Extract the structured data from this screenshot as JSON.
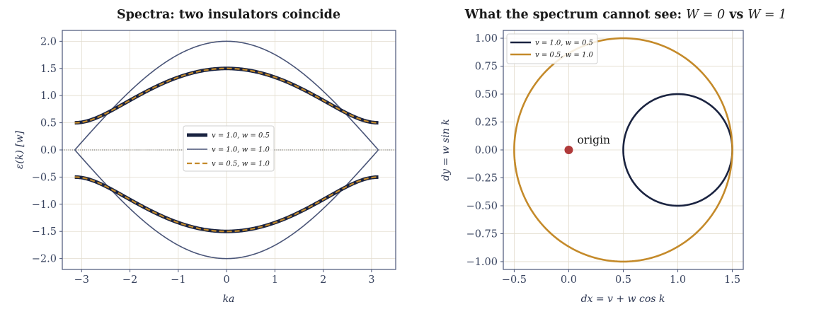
{
  "colors": {
    "navy": "#1a2340",
    "slate": "#4a5578",
    "gold": "#c48a2a",
    "origin": "#b03a3a",
    "grid": "#e2dccd",
    "frame": "#4a5578"
  },
  "chart_data": [
    {
      "type": "line",
      "title": "Spectra: two insulators coincide",
      "xlabel": "ka",
      "ylabel": "ε(k)  [w]",
      "xlim": [
        -3.4,
        3.5
      ],
      "ylim": [
        -2.2,
        2.2
      ],
      "xticks": [
        -3,
        -2,
        -1,
        0,
        1,
        2,
        3
      ],
      "yticks": [
        -2.0,
        -1.5,
        -1.0,
        -0.5,
        0.0,
        0.5,
        1.0,
        1.5,
        2.0
      ],
      "xtick_labels": [
        "−3",
        "−2",
        "−1",
        "0",
        "1",
        "2",
        "3"
      ],
      "ytick_labels": [
        "−2.0",
        "−1.5",
        "−1.0",
        "−0.5",
        "0.0",
        "0.5",
        "1.0",
        "1.5",
        "2.0"
      ],
      "grid": true,
      "zero_line": true,
      "legend_position": "center-right",
      "series": [
        {
          "name": "v = 1.0, w = 0.5",
          "v": 1.0,
          "w": 0.5,
          "style": "solid-thick",
          "color": "#1a2340"
        },
        {
          "name": "v = 1.0, w = 1.0",
          "v": 1.0,
          "w": 1.0,
          "style": "solid-thin",
          "color": "#4a5578"
        },
        {
          "name": "v = 0.5, w = 1.0",
          "v": 0.5,
          "w": 1.0,
          "style": "dashed",
          "color": "#c48a2a"
        }
      ]
    },
    {
      "type": "line",
      "title_prefix": "What the spectrum cannot see:",
      "title_math_1": "W = 0",
      "title_vs": "vs",
      "title_math_2": "W = 1",
      "xlabel": "dx = v + w cos k",
      "ylabel": "dy = w sin k",
      "xlim": [
        -0.6,
        1.6
      ],
      "ylim": [
        -1.07,
        1.07
      ],
      "xticks": [
        -0.5,
        0.0,
        0.5,
        1.0,
        1.5
      ],
      "yticks": [
        -1.0,
        -0.75,
        -0.5,
        -0.25,
        0.0,
        0.25,
        0.5,
        0.75,
        1.0
      ],
      "xtick_labels": [
        "−0.5",
        "0.0",
        "0.5",
        "1.0",
        "1.5"
      ],
      "ytick_labels": [
        "−1.00",
        "−0.75",
        "−0.50",
        "−0.25",
        "0.00",
        "0.25",
        "0.50",
        "0.75",
        "1.00"
      ],
      "grid": true,
      "legend_position": "top-left",
      "series": [
        {
          "name": "v = 1.0, w = 0.5",
          "center": [
            1.0,
            0.0
          ],
          "radius": 0.5,
          "color": "#1a2340"
        },
        {
          "name": "v = 0.5, w = 1.0",
          "center": [
            0.5,
            0.0
          ],
          "radius": 1.0,
          "color": "#c48a2a"
        }
      ],
      "annotation": {
        "label": "origin",
        "point": [
          0.0,
          0.0
        ]
      }
    }
  ]
}
